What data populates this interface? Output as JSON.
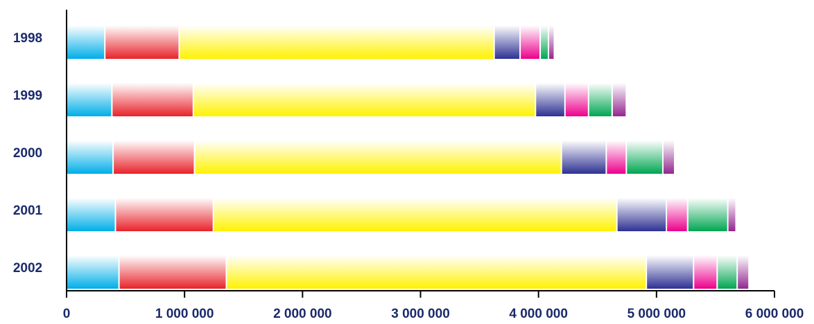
{
  "chart_data": {
    "type": "bar",
    "orientation": "horizontal",
    "stacked": true,
    "categories": [
      "1998",
      "1999",
      "2000",
      "2001",
      "2002"
    ],
    "series": [
      {
        "color": "#00aee8",
        "values": [
          330000,
          390000,
          400000,
          420000,
          450000
        ]
      },
      {
        "color": "#e8232a",
        "values": [
          630000,
          690000,
          690000,
          830000,
          910000
        ]
      },
      {
        "color": "#fff200",
        "values": [
          2670000,
          2900000,
          3110000,
          3420000,
          3560000
        ]
      },
      {
        "color": "#2e3192",
        "values": [
          220000,
          250000,
          380000,
          420000,
          400000
        ]
      },
      {
        "color": "#ec008c",
        "values": [
          170000,
          200000,
          170000,
          180000,
          200000
        ]
      },
      {
        "color": "#00a651",
        "values": [
          70000,
          200000,
          310000,
          340000,
          170000
        ]
      },
      {
        "color": "#92278f",
        "values": [
          50000,
          120000,
          100000,
          70000,
          100000
        ]
      }
    ],
    "xlim": [
      0,
      6000000
    ],
    "xticks": [
      0,
      1000000,
      2000000,
      3000000,
      4000000,
      5000000,
      6000000
    ],
    "xtick_labels": [
      "0",
      "1 000 000",
      "2 000 000",
      "3 000 000",
      "4 000 000",
      "5 000 000",
      "6 000 000"
    ],
    "axis_color": "#000000",
    "label_color": "#1a2a6c",
    "grid": false,
    "legend": "none",
    "title": "",
    "xlabel": "",
    "ylabel": ""
  }
}
